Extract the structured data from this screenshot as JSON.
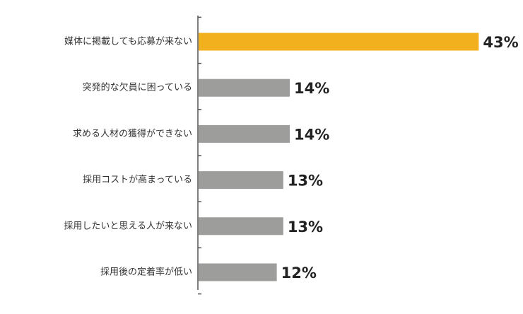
{
  "chart_data": {
    "type": "bar",
    "orientation": "horizontal",
    "categories": [
      "媒体に掲載しても応募が来ない",
      "突発的な欠員に困っている",
      "求める人材の獲得ができない",
      "採用コストが高まっている",
      "採用したいと思える人が来ない",
      "採用後の定着率が低い"
    ],
    "values": [
      43,
      14,
      14,
      13,
      13,
      12
    ],
    "value_labels": [
      "43%",
      "14%",
      "14%",
      "13%",
      "13%",
      "12%"
    ],
    "unit": "%",
    "xlim": [
      0,
      46
    ],
    "title": "",
    "xlabel": "",
    "ylabel": "",
    "grid": false,
    "legend": "none",
    "colors": {
      "highlight": "#f2b01e",
      "default": "#9d9d9b",
      "axis": "#555555"
    }
  }
}
